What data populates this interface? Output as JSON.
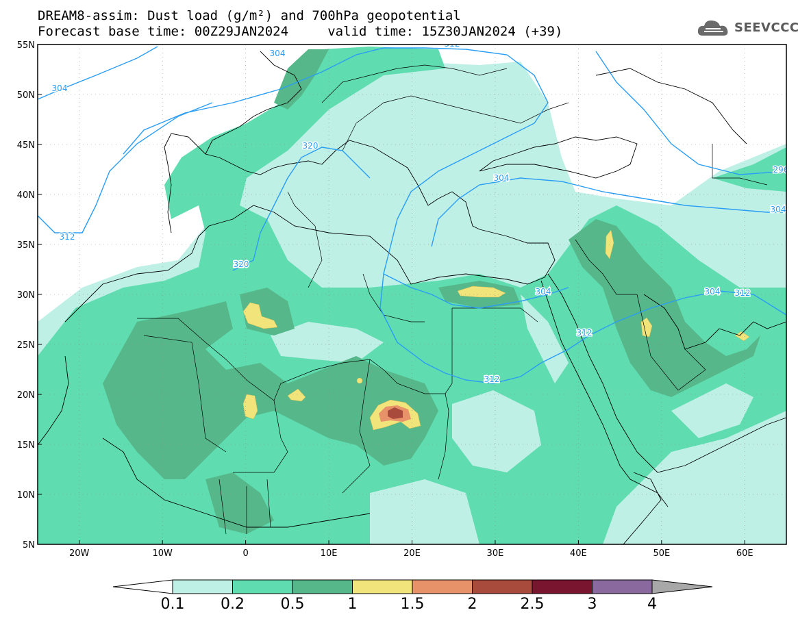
{
  "header": {
    "title_line1": "DREAM8-assim: Dust load (g/m²) and 700hPa geopotential",
    "title_line2": "Forecast base time: 00Z29JAN2024     valid time: 15Z30JAN2024 (+39)"
  },
  "logo": {
    "text": "SEEVCCC",
    "icon": "cloud-icon"
  },
  "map": {
    "lon_range": [
      -25,
      65
    ],
    "lat_range": [
      5,
      55
    ],
    "lon_ticks": [
      "20W",
      "10W",
      "0",
      "10E",
      "20E",
      "30E",
      "40E",
      "50E",
      "60E"
    ],
    "lat_ticks": [
      "55N",
      "50N",
      "45N",
      "40N",
      "35N",
      "30N",
      "25N",
      "20N",
      "15N",
      "10N",
      "5N"
    ],
    "contour_labels": [
      "304",
      "304",
      "312",
      "312",
      "320",
      "320",
      "304",
      "304",
      "312",
      "312",
      "312",
      "304",
      "296",
      "304"
    ],
    "contour_color": "#2a9df4"
  },
  "colorbar": {
    "levels": [
      "0.1",
      "0.2",
      "0.5",
      "1",
      "1.5",
      "2",
      "2.5",
      "3",
      "4"
    ],
    "colors": [
      "#ffffff",
      "#bff0e6",
      "#5fdcb0",
      "#56b88a",
      "#f1e47a",
      "#e8926a",
      "#a84a3c",
      "#7a1530",
      "#8a6a9e",
      "#a8a8a8"
    ]
  }
}
